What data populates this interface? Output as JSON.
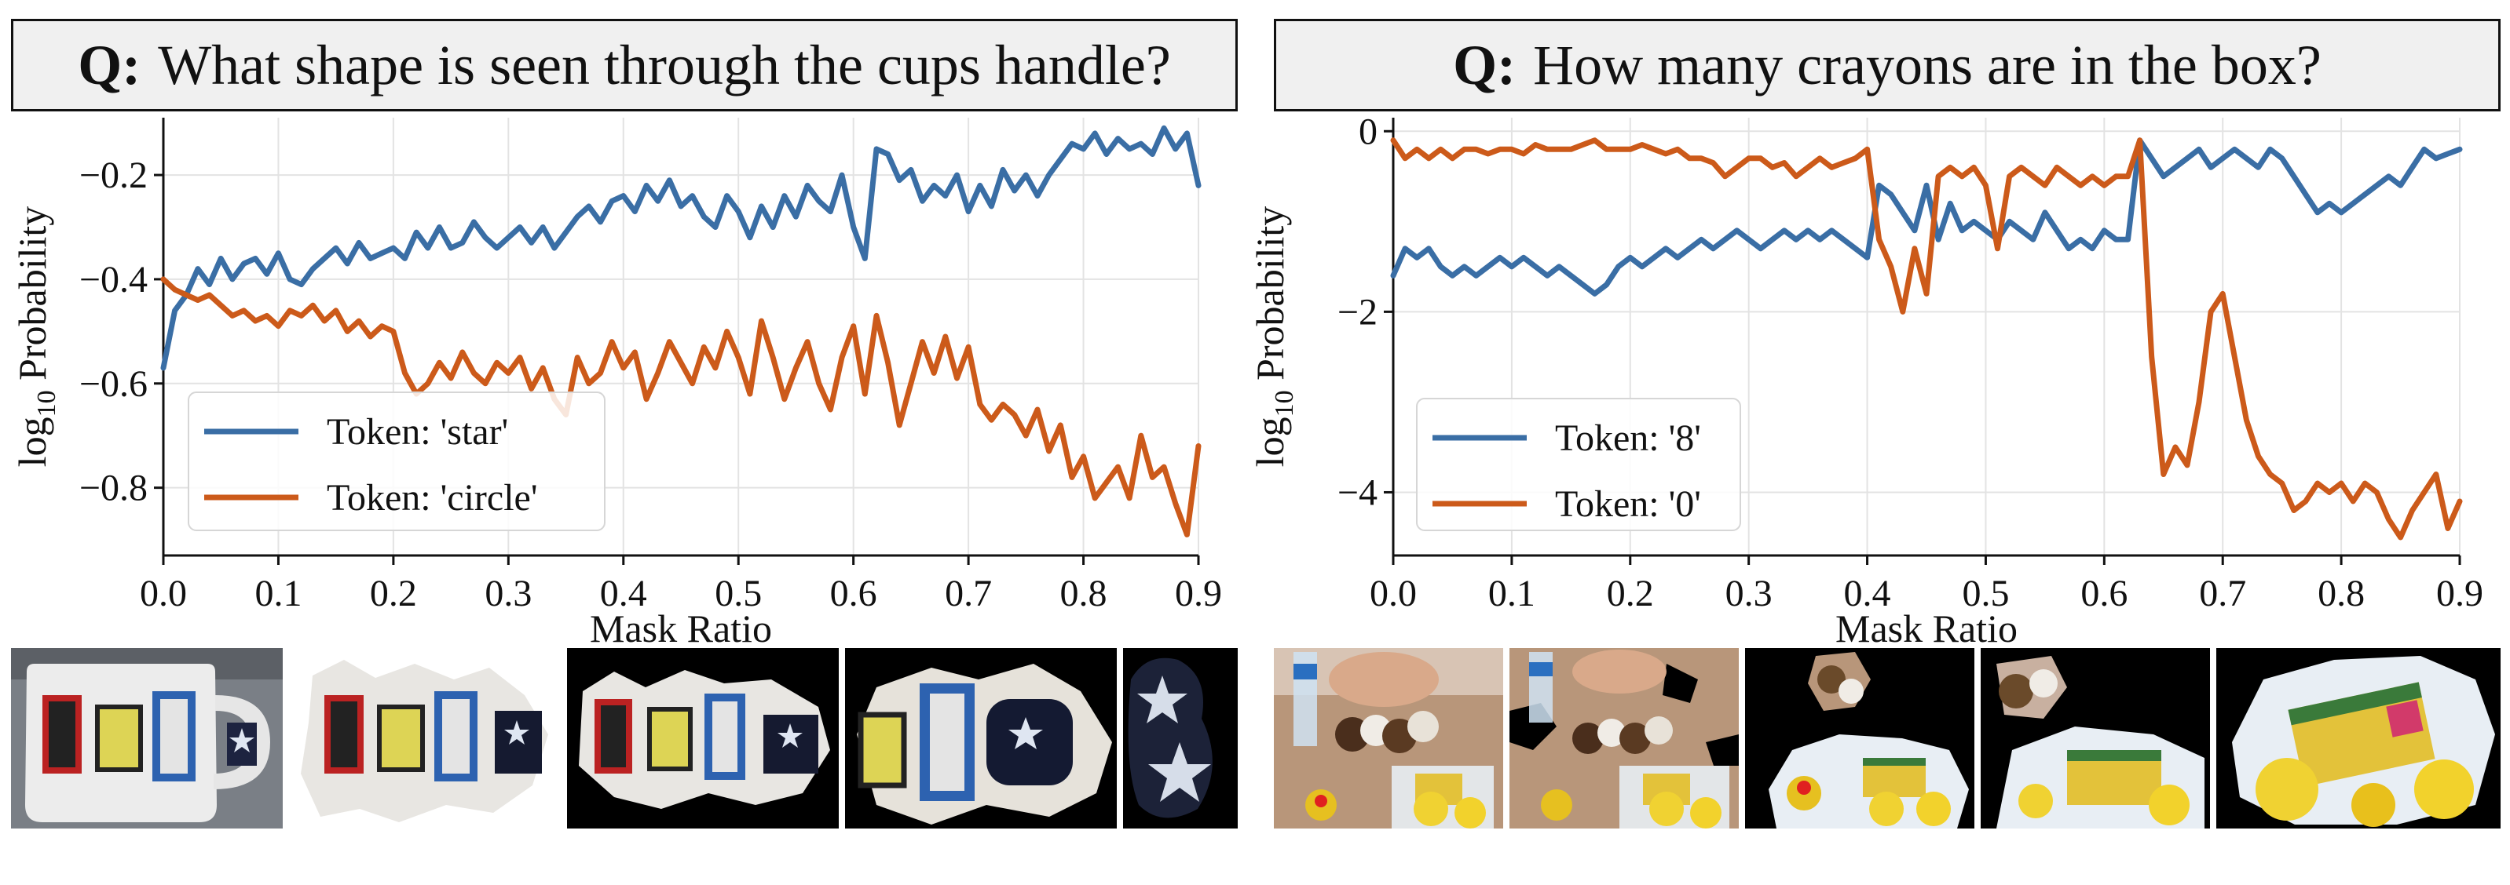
{
  "colors": {
    "blue": "#3a6ea5",
    "orange": "#cc5a1a"
  },
  "panels": [
    {
      "question_prefix": "Q:",
      "question": "What shape is seen through the cups handle?",
      "thumbs": [
        "mug-0",
        "mug-1",
        "mug-2",
        "mug-3",
        "mug-4"
      ]
    },
    {
      "question_prefix": "Q:",
      "question": "How many crayons are in the box?",
      "thumbs": [
        "toys-0",
        "toys-1",
        "toys-2",
        "toys-3",
        "toys-4"
      ]
    }
  ],
  "chart_data": [
    {
      "type": "line",
      "title": "",
      "xlabel": "Mask Ratio",
      "ylabel_main": "log",
      "ylabel_sub": "10",
      "ylabel_rest": " Probability",
      "xlim": [
        0.0,
        0.9
      ],
      "ylim": [
        -0.93,
        -0.09
      ],
      "xticks": [
        0.0,
        0.1,
        0.2,
        0.3,
        0.4,
        0.5,
        0.6,
        0.7,
        0.8,
        0.9
      ],
      "xtick_labels": [
        "0.0",
        "0.1",
        "0.2",
        "0.3",
        "0.4",
        "0.5",
        "0.6",
        "0.7",
        "0.8",
        "0.9"
      ],
      "yticks": [
        -0.2,
        -0.4,
        -0.6,
        -0.8
      ],
      "ytick_labels": [
        "−0.2",
        "−0.4",
        "−0.6",
        "−0.8"
      ],
      "grid": true,
      "legend_position": "lower-left",
      "series": [
        {
          "name": "Token: 'star'",
          "color": "#3a6ea5",
          "x": [
            0.0,
            0.01,
            0.02,
            0.03,
            0.04,
            0.05,
            0.06,
            0.07,
            0.08,
            0.09,
            0.1,
            0.11,
            0.12,
            0.13,
            0.14,
            0.15,
            0.16,
            0.17,
            0.18,
            0.19,
            0.2,
            0.21,
            0.22,
            0.23,
            0.24,
            0.25,
            0.26,
            0.27,
            0.28,
            0.29,
            0.3,
            0.31,
            0.32,
            0.33,
            0.34,
            0.35,
            0.36,
            0.37,
            0.38,
            0.39,
            0.4,
            0.41,
            0.42,
            0.43,
            0.44,
            0.45,
            0.46,
            0.47,
            0.48,
            0.49,
            0.5,
            0.51,
            0.52,
            0.53,
            0.54,
            0.55,
            0.56,
            0.57,
            0.58,
            0.59,
            0.6,
            0.61,
            0.62,
            0.63,
            0.64,
            0.65,
            0.66,
            0.67,
            0.68,
            0.69,
            0.7,
            0.71,
            0.72,
            0.73,
            0.74,
            0.75,
            0.76,
            0.77,
            0.78,
            0.79,
            0.8,
            0.81,
            0.82,
            0.83,
            0.84,
            0.85,
            0.86,
            0.87,
            0.88,
            0.89,
            0.9
          ],
          "y": [
            -0.57,
            -0.46,
            -0.43,
            -0.38,
            -0.41,
            -0.36,
            -0.4,
            -0.37,
            -0.36,
            -0.39,
            -0.35,
            -0.4,
            -0.41,
            -0.38,
            -0.36,
            -0.34,
            -0.37,
            -0.33,
            -0.36,
            -0.35,
            -0.34,
            -0.36,
            -0.31,
            -0.34,
            -0.3,
            -0.34,
            -0.33,
            -0.29,
            -0.32,
            -0.34,
            -0.32,
            -0.3,
            -0.33,
            -0.3,
            -0.34,
            -0.31,
            -0.28,
            -0.26,
            -0.29,
            -0.25,
            -0.24,
            -0.27,
            -0.22,
            -0.25,
            -0.21,
            -0.26,
            -0.24,
            -0.28,
            -0.3,
            -0.24,
            -0.27,
            -0.32,
            -0.26,
            -0.3,
            -0.24,
            -0.28,
            -0.22,
            -0.25,
            -0.27,
            -0.2,
            -0.3,
            -0.36,
            -0.15,
            -0.16,
            -0.21,
            -0.19,
            -0.25,
            -0.22,
            -0.24,
            -0.2,
            -0.27,
            -0.22,
            -0.26,
            -0.19,
            -0.23,
            -0.2,
            -0.24,
            -0.2,
            -0.17,
            -0.14,
            -0.15,
            -0.12,
            -0.16,
            -0.13,
            -0.15,
            -0.14,
            -0.16,
            -0.11,
            -0.15,
            -0.12,
            -0.22
          ]
        },
        {
          "name": "Token: 'circle'",
          "color": "#cc5a1a",
          "x": [
            0.0,
            0.01,
            0.02,
            0.03,
            0.04,
            0.05,
            0.06,
            0.07,
            0.08,
            0.09,
            0.1,
            0.11,
            0.12,
            0.13,
            0.14,
            0.15,
            0.16,
            0.17,
            0.18,
            0.19,
            0.2,
            0.21,
            0.22,
            0.23,
            0.24,
            0.25,
            0.26,
            0.27,
            0.28,
            0.29,
            0.3,
            0.31,
            0.32,
            0.33,
            0.34,
            0.35,
            0.36,
            0.37,
            0.38,
            0.39,
            0.4,
            0.41,
            0.42,
            0.43,
            0.44,
            0.45,
            0.46,
            0.47,
            0.48,
            0.49,
            0.5,
            0.51,
            0.52,
            0.53,
            0.54,
            0.55,
            0.56,
            0.57,
            0.58,
            0.59,
            0.6,
            0.61,
            0.62,
            0.63,
            0.64,
            0.65,
            0.66,
            0.67,
            0.68,
            0.69,
            0.7,
            0.71,
            0.72,
            0.73,
            0.74,
            0.75,
            0.76,
            0.77,
            0.78,
            0.79,
            0.8,
            0.81,
            0.82,
            0.83,
            0.84,
            0.85,
            0.86,
            0.87,
            0.88,
            0.89,
            0.9
          ],
          "y": [
            -0.4,
            -0.42,
            -0.43,
            -0.44,
            -0.43,
            -0.45,
            -0.47,
            -0.46,
            -0.48,
            -0.47,
            -0.49,
            -0.46,
            -0.47,
            -0.45,
            -0.48,
            -0.46,
            -0.5,
            -0.48,
            -0.51,
            -0.49,
            -0.5,
            -0.58,
            -0.62,
            -0.6,
            -0.56,
            -0.59,
            -0.54,
            -0.58,
            -0.6,
            -0.56,
            -0.58,
            -0.55,
            -0.61,
            -0.57,
            -0.63,
            -0.66,
            -0.55,
            -0.6,
            -0.58,
            -0.52,
            -0.57,
            -0.54,
            -0.63,
            -0.58,
            -0.52,
            -0.56,
            -0.6,
            -0.53,
            -0.57,
            -0.5,
            -0.55,
            -0.62,
            -0.48,
            -0.55,
            -0.63,
            -0.57,
            -0.52,
            -0.6,
            -0.65,
            -0.55,
            -0.49,
            -0.62,
            -0.47,
            -0.56,
            -0.68,
            -0.6,
            -0.52,
            -0.58,
            -0.51,
            -0.59,
            -0.53,
            -0.64,
            -0.67,
            -0.64,
            -0.66,
            -0.7,
            -0.65,
            -0.73,
            -0.68,
            -0.78,
            -0.74,
            -0.82,
            -0.79,
            -0.76,
            -0.82,
            -0.7,
            -0.78,
            -0.76,
            -0.83,
            -0.89,
            -0.72
          ]
        }
      ]
    },
    {
      "type": "line",
      "title": "",
      "xlabel": "Mask Ratio",
      "ylabel_main": "log",
      "ylabel_sub": "10",
      "ylabel_rest": " Probability",
      "xlim": [
        0.0,
        0.9
      ],
      "ylim": [
        -4.7,
        0.15
      ],
      "xticks": [
        0.0,
        0.1,
        0.2,
        0.3,
        0.4,
        0.5,
        0.6,
        0.7,
        0.8,
        0.9
      ],
      "xtick_labels": [
        "0.0",
        "0.1",
        "0.2",
        "0.3",
        "0.4",
        "0.5",
        "0.6",
        "0.7",
        "0.8",
        "0.9"
      ],
      "yticks": [
        0,
        -2,
        -4
      ],
      "ytick_labels": [
        "0",
        "−2",
        "−4"
      ],
      "grid": true,
      "legend_position": "lower-left",
      "series": [
        {
          "name": "Token: '8'",
          "color": "#3a6ea5",
          "x": [
            0.0,
            0.01,
            0.02,
            0.03,
            0.04,
            0.05,
            0.06,
            0.07,
            0.08,
            0.09,
            0.1,
            0.11,
            0.12,
            0.13,
            0.14,
            0.15,
            0.16,
            0.17,
            0.18,
            0.19,
            0.2,
            0.21,
            0.22,
            0.23,
            0.24,
            0.25,
            0.26,
            0.27,
            0.28,
            0.29,
            0.3,
            0.31,
            0.32,
            0.33,
            0.34,
            0.35,
            0.36,
            0.37,
            0.38,
            0.39,
            0.4,
            0.41,
            0.42,
            0.43,
            0.44,
            0.45,
            0.46,
            0.47,
            0.48,
            0.49,
            0.5,
            0.51,
            0.52,
            0.53,
            0.54,
            0.55,
            0.56,
            0.57,
            0.58,
            0.59,
            0.6,
            0.61,
            0.62,
            0.63,
            0.64,
            0.65,
            0.66,
            0.67,
            0.68,
            0.69,
            0.7,
            0.71,
            0.72,
            0.73,
            0.74,
            0.75,
            0.76,
            0.77,
            0.78,
            0.79,
            0.8,
            0.81,
            0.82,
            0.83,
            0.84,
            0.85,
            0.86,
            0.87,
            0.88,
            0.89,
            0.9
          ],
          "y": [
            -1.6,
            -1.3,
            -1.4,
            -1.3,
            -1.5,
            -1.6,
            -1.5,
            -1.6,
            -1.5,
            -1.4,
            -1.5,
            -1.4,
            -1.5,
            -1.6,
            -1.5,
            -1.6,
            -1.7,
            -1.8,
            -1.7,
            -1.5,
            -1.4,
            -1.5,
            -1.4,
            -1.3,
            -1.4,
            -1.3,
            -1.2,
            -1.3,
            -1.2,
            -1.1,
            -1.2,
            -1.3,
            -1.2,
            -1.1,
            -1.2,
            -1.1,
            -1.2,
            -1.1,
            -1.2,
            -1.3,
            -1.4,
            -0.6,
            -0.7,
            -0.9,
            -1.1,
            -0.6,
            -1.2,
            -0.8,
            -1.1,
            -1.0,
            -1.1,
            -1.2,
            -1.0,
            -1.1,
            -1.2,
            -0.9,
            -1.1,
            -1.3,
            -1.2,
            -1.3,
            -1.1,
            -1.2,
            -1.2,
            -0.1,
            -0.3,
            -0.5,
            -0.4,
            -0.3,
            -0.2,
            -0.4,
            -0.3,
            -0.2,
            -0.3,
            -0.4,
            -0.2,
            -0.3,
            -0.5,
            -0.7,
            -0.9,
            -0.8,
            -0.9,
            -0.8,
            -0.7,
            -0.6,
            -0.5,
            -0.6,
            -0.4,
            -0.2,
            -0.3,
            -0.25,
            -0.2
          ]
        },
        {
          "name": "Token: '0'",
          "color": "#cc5a1a",
          "x": [
            0.0,
            0.01,
            0.02,
            0.03,
            0.04,
            0.05,
            0.06,
            0.07,
            0.08,
            0.09,
            0.1,
            0.11,
            0.12,
            0.13,
            0.14,
            0.15,
            0.16,
            0.17,
            0.18,
            0.19,
            0.2,
            0.21,
            0.22,
            0.23,
            0.24,
            0.25,
            0.26,
            0.27,
            0.28,
            0.29,
            0.3,
            0.31,
            0.32,
            0.33,
            0.34,
            0.35,
            0.36,
            0.37,
            0.38,
            0.39,
            0.4,
            0.41,
            0.42,
            0.43,
            0.44,
            0.45,
            0.46,
            0.47,
            0.48,
            0.49,
            0.5,
            0.51,
            0.52,
            0.53,
            0.54,
            0.55,
            0.56,
            0.57,
            0.58,
            0.59,
            0.6,
            0.61,
            0.62,
            0.63,
            0.64,
            0.65,
            0.66,
            0.67,
            0.68,
            0.69,
            0.7,
            0.71,
            0.72,
            0.73,
            0.74,
            0.75,
            0.76,
            0.77,
            0.78,
            0.79,
            0.8,
            0.81,
            0.82,
            0.83,
            0.84,
            0.85,
            0.86,
            0.87,
            0.88,
            0.89,
            0.9
          ],
          "y": [
            -0.1,
            -0.3,
            -0.2,
            -0.3,
            -0.2,
            -0.3,
            -0.2,
            -0.2,
            -0.25,
            -0.2,
            -0.2,
            -0.25,
            -0.15,
            -0.2,
            -0.2,
            -0.2,
            -0.15,
            -0.1,
            -0.2,
            -0.2,
            -0.2,
            -0.15,
            -0.2,
            -0.25,
            -0.2,
            -0.3,
            -0.3,
            -0.35,
            -0.5,
            -0.4,
            -0.3,
            -0.3,
            -0.4,
            -0.35,
            -0.5,
            -0.4,
            -0.3,
            -0.4,
            -0.35,
            -0.3,
            -0.2,
            -1.2,
            -1.5,
            -2.0,
            -1.3,
            -1.8,
            -0.5,
            -0.4,
            -0.5,
            -0.4,
            -0.6,
            -1.3,
            -0.5,
            -0.4,
            -0.5,
            -0.6,
            -0.4,
            -0.5,
            -0.6,
            -0.5,
            -0.6,
            -0.5,
            -0.5,
            -0.1,
            -2.5,
            -3.8,
            -3.5,
            -3.7,
            -3.0,
            -2.0,
            -1.8,
            -2.5,
            -3.2,
            -3.6,
            -3.8,
            -3.9,
            -4.2,
            -4.1,
            -3.9,
            -4.0,
            -3.9,
            -4.1,
            -3.9,
            -4.0,
            -4.3,
            -4.5,
            -4.2,
            -4.0,
            -3.8,
            -4.4,
            -4.1
          ]
        }
      ]
    }
  ]
}
